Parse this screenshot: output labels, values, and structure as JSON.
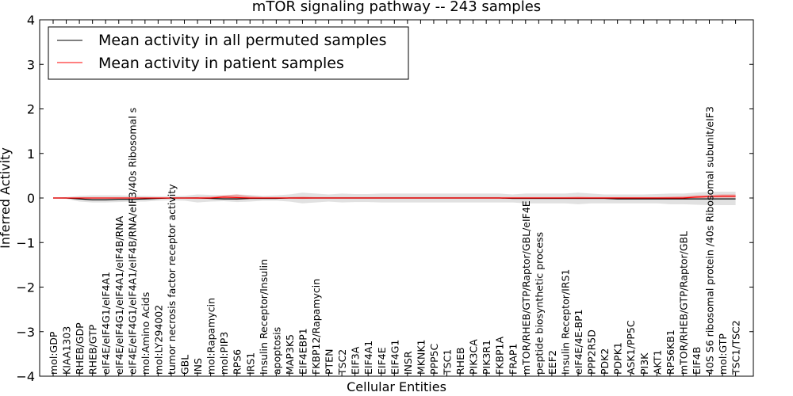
{
  "chart_data": {
    "type": "line",
    "title": "mTOR signaling pathway -- 243 samples",
    "xlabel": "Cellular Entities",
    "ylabel": "Inferred Activity",
    "ylim": [
      -4,
      4
    ],
    "yticks": [
      -4,
      -3,
      -2,
      -1,
      0,
      1,
      2,
      3,
      4
    ],
    "legend": {
      "placement": "top-left"
    },
    "categories": [
      "mol:GDP",
      "KIAA1303",
      "RHEB/GDP",
      "RHEB/GTP",
      "eIF4E/eIF4G1/eIF4A1",
      "eIF4E/eIF4G1/eIF4A1/eIF4B/RNA",
      "eIF4E/eIF4G1/eIF4A1/eIF4B/RNA/eIF3/40s Ribosomal s",
      "mol:Amino Acids",
      "mol:LY294002",
      "tumor necrosis factor receptor activity",
      "GBL",
      "INS",
      "mol:Rapamycin",
      "mol:PIP3",
      "RPS6",
      "IRS1",
      "Insulin Receptor/Insulin",
      "apoptosis",
      "MAP3K5",
      "EIF4EBP1",
      "FKBP12/Rapamycin",
      "PTEN",
      "TSC2",
      "EIF3A",
      "EIF4A1",
      "EIF4E",
      "EIF4G1",
      "INSR",
      "MKNK1",
      "PPP5C",
      "TSC1",
      "RHEB",
      "PIK3CA",
      "PIK3R1",
      "FKBP1A",
      "FRAP1",
      "mTOR/RHEB/GTP/Raptor/GBL/eIF4E",
      "peptide biosynthetic process",
      "EEF2",
      "Insulin Receptor/IRS1",
      "eIF4E/4E-BP1",
      "PPP2R5D",
      "PDK2",
      "PDPK1",
      "ASK1/PP5C",
      "PI3K",
      "AKT1",
      "RPS6KB1",
      "mTOR/RHEB/GTP/Raptor/GBL",
      "EIF4B",
      "40S S6 ribosomal protein /40s Ribosomal subunit/eIF3",
      "mol:GTP",
      "TSC1/TSC2"
    ],
    "series": [
      {
        "name": "Mean activity in all permuted samples",
        "color": "#000000",
        "values": [
          0,
          0,
          -0.02,
          -0.04,
          -0.04,
          -0.03,
          -0.03,
          -0.02,
          -0.01,
          0,
          0,
          0,
          -0.01,
          -0.02,
          -0.02,
          -0.01,
          -0.01,
          -0.01,
          0,
          0,
          0,
          0,
          0,
          0,
          0,
          0,
          0,
          0,
          0,
          0,
          0,
          0,
          0,
          0,
          0,
          -0.01,
          -0.01,
          -0.01,
          -0.01,
          -0.01,
          -0.01,
          -0.01,
          -0.01,
          -0.02,
          -0.02,
          -0.02,
          -0.02,
          -0.02,
          -0.02,
          -0.02,
          -0.02,
          -0.02,
          -0.02
        ],
        "band_upper": [
          0,
          0.02,
          0.05,
          0.06,
          0.06,
          0.06,
          0.05,
          0.05,
          0.04,
          0.04,
          0.05,
          0.08,
          0.07,
          0.06,
          0.08,
          0.07,
          0.05,
          0.06,
          0.08,
          0.12,
          0.1,
          0.08,
          0.1,
          0.09,
          0.09,
          0.1,
          0.1,
          0.1,
          0.1,
          0.1,
          0.1,
          0.1,
          0.1,
          0.1,
          0.1,
          0.08,
          0.1,
          0.1,
          0.1,
          0.1,
          0.12,
          0.1,
          0.08,
          0.08,
          0.08,
          0.08,
          0.09,
          0.1,
          0.1,
          0.12,
          0.14,
          0.14,
          0.14
        ],
        "band_lower": [
          0,
          -0.02,
          -0.08,
          -0.1,
          -0.1,
          -0.09,
          -0.08,
          -0.08,
          -0.06,
          -0.05,
          -0.06,
          -0.1,
          -0.08,
          -0.07,
          -0.09,
          -0.08,
          -0.06,
          -0.06,
          -0.08,
          -0.12,
          -0.1,
          -0.08,
          -0.1,
          -0.09,
          -0.09,
          -0.1,
          -0.1,
          -0.1,
          -0.1,
          -0.1,
          -0.1,
          -0.1,
          -0.1,
          -0.1,
          -0.1,
          -0.1,
          -0.12,
          -0.12,
          -0.12,
          -0.12,
          -0.14,
          -0.12,
          -0.12,
          -0.12,
          -0.12,
          -0.12,
          -0.12,
          -0.14,
          -0.14,
          -0.15,
          -0.16,
          -0.16,
          -0.16
        ]
      },
      {
        "name": "Mean activity in patient samples",
        "color": "#ff0000",
        "values": [
          0,
          0,
          0,
          0,
          0,
          0,
          0,
          0,
          0,
          0,
          0,
          0,
          0,
          0.02,
          0.01,
          0,
          0,
          0,
          0,
          0,
          0,
          0,
          0,
          0,
          0,
          0,
          0,
          0,
          0,
          0,
          0,
          0,
          0,
          0,
          0,
          0,
          0,
          0,
          0,
          0,
          0,
          0,
          0,
          0,
          0,
          0,
          0,
          0,
          0,
          0.02,
          0.03,
          0.04,
          0.04
        ],
        "band_upper": [
          0,
          0,
          0.01,
          0.01,
          0.01,
          0.01,
          0.01,
          0.01,
          0.01,
          0.01,
          0.01,
          0.02,
          0.03,
          0.06,
          0.08,
          0.04,
          0.02,
          0.02,
          0.02,
          0.03,
          0.02,
          0.02,
          0.02,
          0.02,
          0.02,
          0.02,
          0.02,
          0.02,
          0.02,
          0.02,
          0.02,
          0.02,
          0.02,
          0.02,
          0.02,
          0.02,
          0.02,
          0.02,
          0.02,
          0.02,
          0.03,
          0.02,
          0.02,
          0.02,
          0.02,
          0.02,
          0.02,
          0.03,
          0.04,
          0.06,
          0.07,
          0.08,
          0.08
        ],
        "band_lower": [
          0,
          0,
          -0.01,
          -0.01,
          -0.01,
          -0.01,
          -0.01,
          -0.01,
          -0.01,
          -0.01,
          -0.01,
          -0.02,
          -0.02,
          -0.02,
          -0.04,
          -0.02,
          -0.01,
          -0.01,
          -0.01,
          -0.02,
          -0.01,
          -0.01,
          -0.01,
          -0.01,
          -0.01,
          -0.01,
          -0.01,
          -0.01,
          -0.01,
          -0.01,
          -0.01,
          -0.01,
          -0.01,
          -0.01,
          -0.01,
          -0.01,
          -0.01,
          -0.01,
          -0.01,
          -0.01,
          -0.02,
          -0.01,
          -0.01,
          -0.01,
          -0.01,
          -0.01,
          -0.01,
          -0.01,
          -0.01,
          0,
          0.01,
          0.01,
          0.01
        ]
      }
    ]
  }
}
